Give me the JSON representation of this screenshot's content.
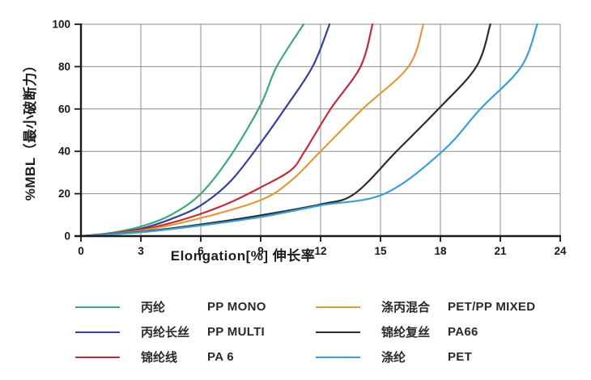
{
  "chart_data": {
    "type": "line",
    "title": "",
    "xlabel": "Elongation[%]  伸长率",
    "ylabel": "%MBL（最小破断力）",
    "xlim": [
      0,
      24
    ],
    "ylim": [
      0,
      100
    ],
    "xticks": [
      0,
      3,
      6,
      9,
      12,
      15,
      18,
      21,
      24
    ],
    "yticks": [
      0,
      20,
      40,
      60,
      80,
      100
    ],
    "grid": true,
    "grid_color": "#8d8d8d",
    "axis_color": "#1a1a1a",
    "legend_position": "bottom, two columns",
    "series": [
      {
        "id": "pp-mono",
        "label_cn": "丙纶",
        "label_en": "PP MONO",
        "color": "#3aa878",
        "points": [
          [
            0,
            0
          ],
          [
            1.5,
            1.5
          ],
          [
            3,
            4.5
          ],
          [
            4.5,
            10
          ],
          [
            6,
            20
          ],
          [
            7.5,
            38
          ],
          [
            9,
            62
          ],
          [
            9.8,
            80
          ],
          [
            11.15,
            100
          ]
        ]
      },
      {
        "id": "pp-multi",
        "label_cn": "丙纶长丝",
        "label_en": "PP MULTI",
        "color": "#34409a",
        "points": [
          [
            0,
            0
          ],
          [
            1.5,
            1.2
          ],
          [
            3,
            3.5
          ],
          [
            4.5,
            8
          ],
          [
            6,
            14.5
          ],
          [
            7.5,
            26
          ],
          [
            9,
            44
          ],
          [
            10.2,
            60
          ],
          [
            11.6,
            80
          ],
          [
            12.45,
            100
          ]
        ]
      },
      {
        "id": "pa6",
        "label_cn": "锦纶线",
        "label_en": "PA 6",
        "color": "#c02c3d",
        "points": [
          [
            0,
            0
          ],
          [
            1.5,
            1.2
          ],
          [
            3,
            3
          ],
          [
            4.5,
            6.2
          ],
          [
            6,
            10.5
          ],
          [
            7.5,
            16
          ],
          [
            9,
            23
          ],
          [
            10.5,
            31
          ],
          [
            11.2,
            40
          ],
          [
            12.5,
            60
          ],
          [
            14,
            80
          ],
          [
            14.6,
            100
          ]
        ]
      },
      {
        "id": "pet-pp-mixed",
        "label_cn": "涤丙混合",
        "label_en": "PET/PP MIXED",
        "color": "#e3993b",
        "points": [
          [
            0,
            0
          ],
          [
            3,
            2.5
          ],
          [
            6,
            8.5
          ],
          [
            9,
            17
          ],
          [
            10.5,
            26
          ],
          [
            12,
            40
          ],
          [
            14.1,
            60
          ],
          [
            16.4,
            80
          ],
          [
            17.15,
            100
          ]
        ]
      },
      {
        "id": "pa66",
        "label_cn": "锦纶复丝",
        "label_en": "PA66",
        "color": "#2d2d2d",
        "points": [
          [
            0,
            0
          ],
          [
            3,
            2
          ],
          [
            6,
            5.5
          ],
          [
            9,
            9.8
          ],
          [
            12,
            15
          ],
          [
            13.7,
            20
          ],
          [
            15.8,
            40
          ],
          [
            17.9,
            60
          ],
          [
            19.8,
            80
          ],
          [
            20.5,
            100
          ]
        ]
      },
      {
        "id": "pet",
        "label_cn": "涤纶",
        "label_en": "PET",
        "color": "#3b9ed6",
        "points": [
          [
            0,
            0
          ],
          [
            3,
            1.8
          ],
          [
            6,
            5
          ],
          [
            9,
            9
          ],
          [
            12,
            14.5
          ],
          [
            15.2,
            20
          ],
          [
            18.1,
            40
          ],
          [
            20,
            60
          ],
          [
            22.05,
            80
          ],
          [
            22.85,
            100
          ]
        ]
      }
    ]
  }
}
